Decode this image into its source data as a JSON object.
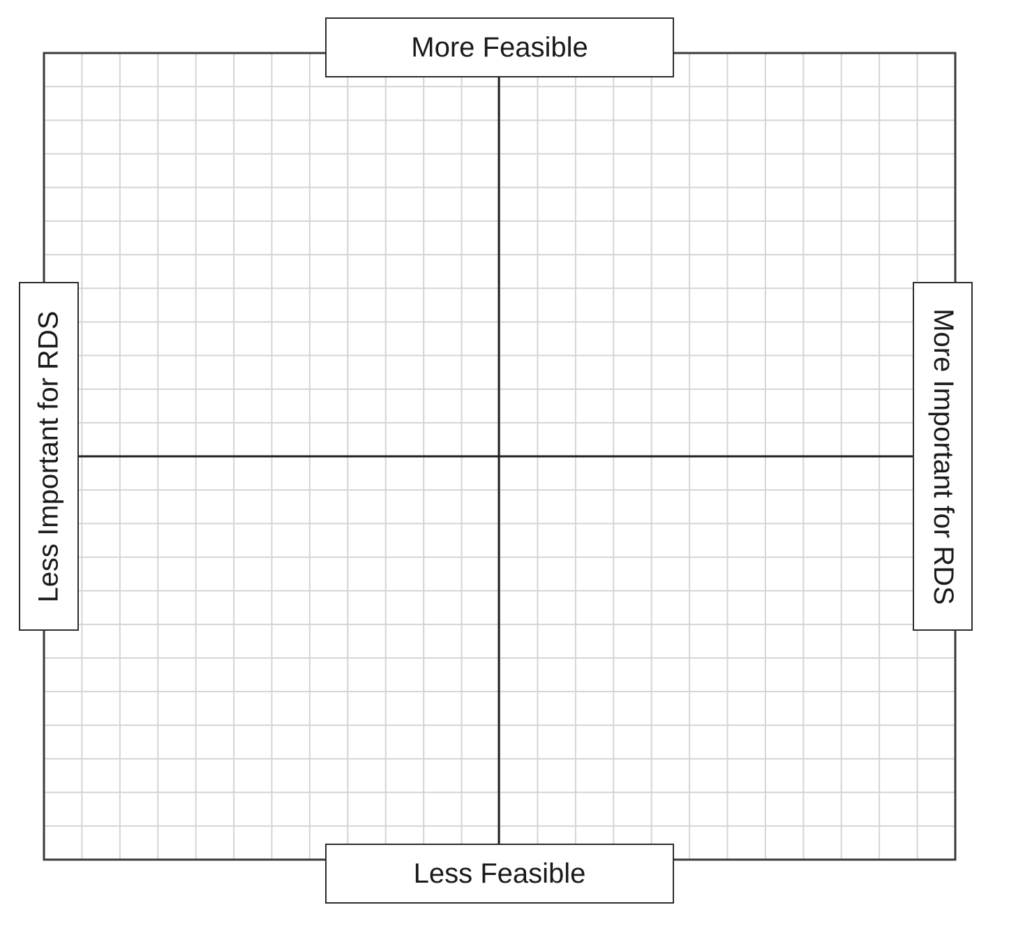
{
  "matrix": {
    "labels": {
      "top": "More Feasible",
      "bottom": "Less Feasible",
      "left": "Less Important for RDS",
      "right": "More Important for RDS"
    },
    "grid": {
      "columns": 24,
      "rows": 24
    },
    "colors": {
      "frame": "#3a3a3a",
      "axis": "#1e1e1e",
      "gridline": "#d4d4d4",
      "label_border": "#2b2b2b",
      "background": "#ffffff"
    }
  }
}
